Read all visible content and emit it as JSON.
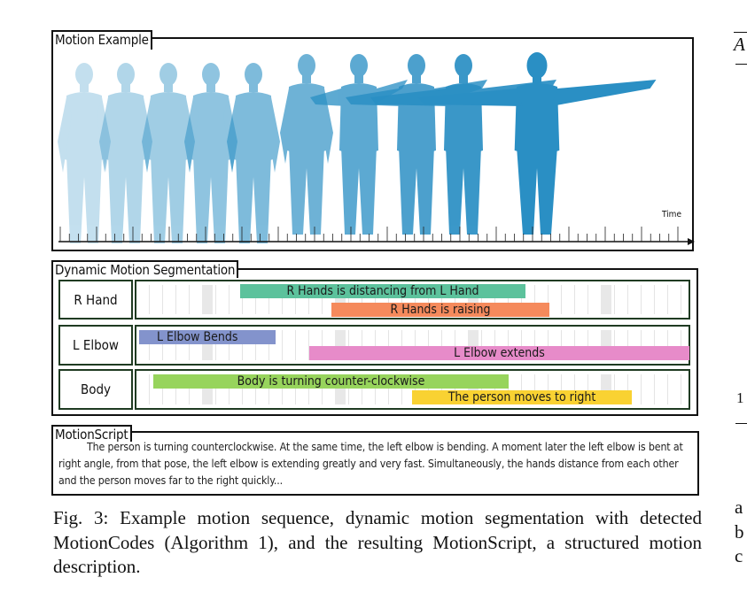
{
  "figure": {
    "motion_example": {
      "title": "Motion Example",
      "axis_label": "Time",
      "figure_count": 10,
      "figure_color": "#2a8fc4"
    },
    "segmentation": {
      "title": "Dynamic Motion Segmentation",
      "rows": [
        {
          "label": "R Hand",
          "segments": [
            {
              "text": "R Hands is distancing from L Hand",
              "color": "#5cc29c"
            },
            {
              "text": "R Hands is raising",
              "color": "#f58a5c"
            }
          ]
        },
        {
          "label": "L Elbow",
          "segments": [
            {
              "text": "L Elbow Bends",
              "color": "#8393cc"
            },
            {
              "text": "L Elbow extends",
              "color": "#e78bc9"
            }
          ]
        },
        {
          "label": "Body",
          "segments": [
            {
              "text": "Body is turning counter-clockwise",
              "color": "#97d45c"
            },
            {
              "text": "The person moves to right",
              "color": "#f9d232"
            }
          ]
        }
      ]
    },
    "motionscript": {
      "title": "MotionScript",
      "text": "The person is turning counterclockwise. At the same time, the left elbow is bending. A moment later the left elbow is bent at right angle, from that pose, the left elbow is extending greatly and very fast. Simultaneously, the hands distance from each other and the person moves far to the right quickly..."
    },
    "caption": "Fig. 3: Example motion sequence, dynamic motion segmentation with detected MotionCodes (Algorithm 1), and the resulting MotionScript, a structured motion description."
  },
  "right_column_fragments": {
    "top": "A",
    "mid": "1",
    "lines": [
      "a",
      "b",
      "c"
    ]
  }
}
